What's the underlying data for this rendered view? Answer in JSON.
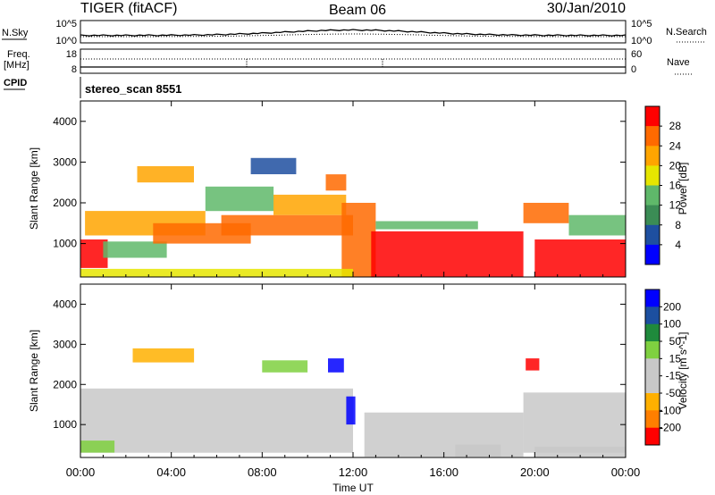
{
  "header": {
    "station": "TIGER (fitACF)",
    "beam": "Beam 06",
    "date": "30/Jan/2010"
  },
  "top_panels": {
    "nsky_label": "N.Sky",
    "nsearch_label": "N.Search",
    "freq_label_line1": "Freq.",
    "freq_label_line2": "[MHz]",
    "nave_label": "Nave",
    "cpid_label": "CPID",
    "cpid_value": "stereo_scan 8551",
    "noise_left_ticks": [
      "10^5",
      "10^0"
    ],
    "noise_right_ticks": [
      "10^5",
      "10^0"
    ],
    "freq_left_ticks": [
      "18",
      "8"
    ],
    "freq_right_ticks": [
      "60",
      "0"
    ]
  },
  "colors": {
    "power_scale": [
      "#0000ff",
      "#1e4fa0",
      "#3b8c55",
      "#5fb86a",
      "#e6e600",
      "#ffa500",
      "#ff6a00",
      "#ff0000"
    ],
    "velocity_scale": [
      "#ff0000",
      "#ff7f00",
      "#ffb000",
      "#c8c8c8",
      "#c8c8c8",
      "#7fd040",
      "#1f8a3c",
      "#1c4fa0",
      "#0000ff"
    ],
    "ground_scatter": "#c8c8c8"
  },
  "chart_data": [
    {
      "type": "heatmap",
      "panel": "power",
      "xlabel": "Time UT",
      "ylabel": "Slant Range [km]",
      "x_tick_labels": [
        "00:00",
        "04:00",
        "08:00",
        "12:00",
        "16:00",
        "20:00",
        "00:00"
      ],
      "xlim": [
        0,
        24
      ],
      "ylim": [
        180,
        4500
      ],
      "y_tick_labels": [
        "1000",
        "2000",
        "3000",
        "4000"
      ],
      "yticks": [
        1000,
        2000,
        3000,
        4000
      ],
      "colorbar_label": "Power [dB]",
      "colorbar_ticks": [
        "4",
        "8",
        "12",
        "16",
        "20",
        "24",
        "28"
      ],
      "colorbar_range": [
        0,
        30
      ],
      "regions": [
        {
          "t0": 0.0,
          "t1": 1.2,
          "r0": 400,
          "r1": 1100,
          "level": 28
        },
        {
          "t0": 0.2,
          "t1": 5.5,
          "r0": 1200,
          "r1": 1800,
          "level": 20
        },
        {
          "t0": 1.0,
          "t1": 3.8,
          "r0": 650,
          "r1": 1050,
          "level": 14
        },
        {
          "t0": 2.5,
          "t1": 5.0,
          "r0": 2500,
          "r1": 2900,
          "level": 22
        },
        {
          "t0": 3.2,
          "t1": 7.5,
          "r0": 1000,
          "r1": 1500,
          "level": 24
        },
        {
          "t0": 5.5,
          "t1": 8.5,
          "r0": 1800,
          "r1": 2400,
          "level": 12
        },
        {
          "t0": 6.2,
          "t1": 12.0,
          "r0": 1200,
          "r1": 1700,
          "level": 26
        },
        {
          "t0": 8.5,
          "t1": 11.7,
          "r0": 1700,
          "r1": 2200,
          "level": 20
        },
        {
          "t0": 10.8,
          "t1": 11.7,
          "r0": 2300,
          "r1": 2700,
          "level": 26
        },
        {
          "t0": 11.5,
          "t1": 13.0,
          "r0": 180,
          "r1": 2000,
          "level": 24
        },
        {
          "t0": 12.8,
          "t1": 19.5,
          "r0": 180,
          "r1": 1300,
          "level": 28
        },
        {
          "t0": 13.0,
          "t1": 17.5,
          "r0": 1350,
          "r1": 1550,
          "level": 14
        },
        {
          "t0": 0.0,
          "t1": 12.0,
          "r0": 180,
          "r1": 380,
          "level": 16
        },
        {
          "t0": 20.0,
          "t1": 24.0,
          "r0": 180,
          "r1": 1100,
          "level": 28
        },
        {
          "t0": 19.5,
          "t1": 21.5,
          "r0": 1500,
          "r1": 2000,
          "level": 24
        },
        {
          "t0": 21.5,
          "t1": 24.0,
          "r0": 1200,
          "r1": 1700,
          "level": 12
        },
        {
          "t0": 7.5,
          "t1": 9.5,
          "r0": 2700,
          "r1": 3100,
          "level": 4
        }
      ]
    },
    {
      "type": "heatmap",
      "panel": "velocity",
      "xlabel": "Time UT",
      "ylabel": "Slant Range [km]",
      "x_tick_labels": [
        "00:00",
        "04:00",
        "08:00",
        "12:00",
        "16:00",
        "20:00",
        "00:00"
      ],
      "xlim": [
        0,
        24
      ],
      "ylim": [
        180,
        4500
      ],
      "y_tick_labels": [
        "1000",
        "2000",
        "3000",
        "4000"
      ],
      "yticks": [
        1000,
        2000,
        3000,
        4000
      ],
      "colorbar_label": "Velocity [m s^-1]",
      "colorbar_ticks": [
        "200",
        "100",
        "50",
        "15",
        "-15",
        "-50",
        "-100",
        "-200"
      ],
      "colorbar_range": [
        -250,
        250
      ],
      "regions": [
        {
          "t0": 0.0,
          "t1": 12.0,
          "r0": 300,
          "r1": 1900,
          "level": 0
        },
        {
          "t0": 12.5,
          "t1": 19.5,
          "r0": 200,
          "r1": 1300,
          "level": 0
        },
        {
          "t0": 19.5,
          "t1": 24.0,
          "r0": 300,
          "r1": 1800,
          "level": 0
        },
        {
          "t0": 2.3,
          "t1": 5.0,
          "r0": 2550,
          "r1": 2900,
          "level": -90
        },
        {
          "t0": 10.9,
          "t1": 11.6,
          "r0": 2300,
          "r1": 2650,
          "level": 220
        },
        {
          "t0": 11.7,
          "t1": 12.1,
          "r0": 1000,
          "r1": 1700,
          "level": 220
        },
        {
          "t0": 8.0,
          "t1": 10.0,
          "r0": 2300,
          "r1": 2600,
          "level": 60
        },
        {
          "t0": 0.0,
          "t1": 1.5,
          "r0": 300,
          "r1": 600,
          "level": 60
        },
        {
          "t0": 16.5,
          "t1": 18.5,
          "r0": 200,
          "r1": 500,
          "level": -50
        },
        {
          "t0": 20.0,
          "t1": 24.0,
          "r0": 180,
          "r1": 450,
          "level": -40
        },
        {
          "t0": 19.6,
          "t1": 20.2,
          "r0": 2350,
          "r1": 2650,
          "level": -200
        }
      ]
    }
  ]
}
